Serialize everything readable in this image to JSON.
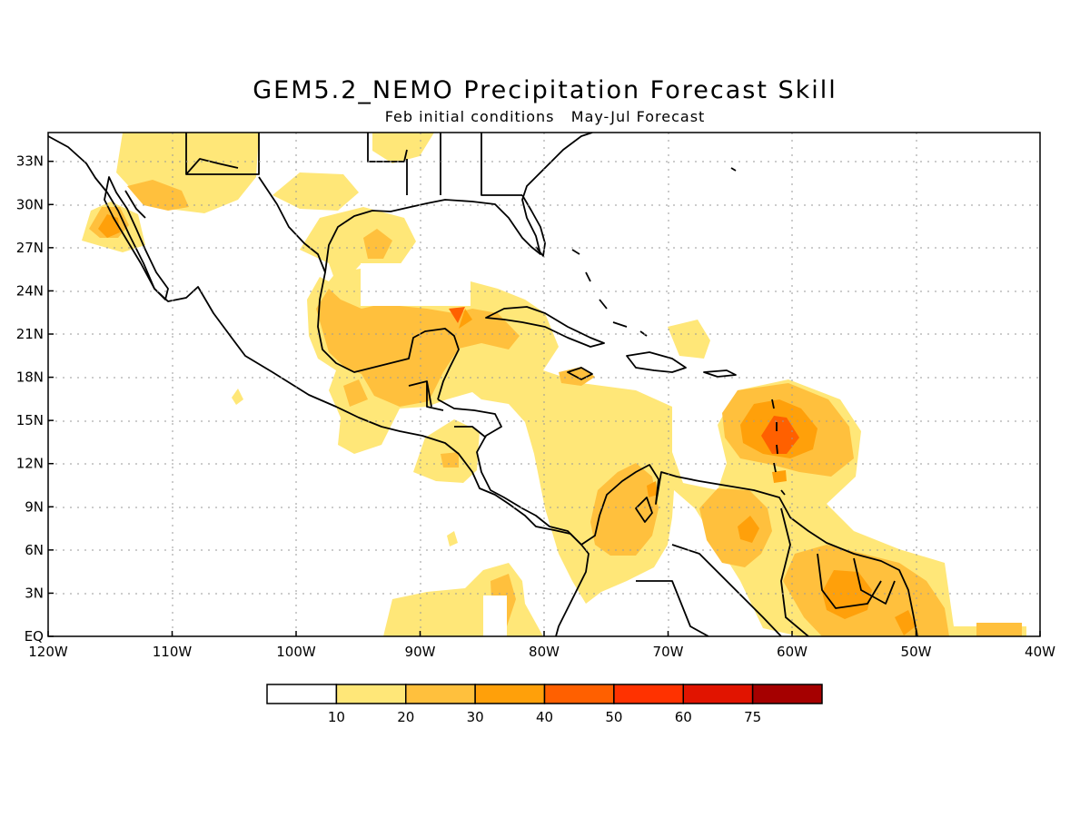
{
  "title": "GEM5.2_NEMO Precipitation Forecast Skill",
  "subtitle": "Feb initial conditions   May-Jul Forecast",
  "axes": {
    "x_ticks": [
      "120W",
      "110W",
      "100W",
      "90W",
      "80W",
      "70W",
      "60W",
      "50W",
      "40W"
    ],
    "y_ticks": [
      "EQ",
      "3N",
      "6N",
      "9N",
      "12N",
      "15N",
      "18N",
      "21N",
      "24N",
      "27N",
      "30N",
      "33N"
    ],
    "lon_range": [
      -120,
      -40
    ],
    "lat_range": [
      0,
      35
    ],
    "grid": "dotted"
  },
  "legend": {
    "labels": [
      "10",
      "20",
      "30",
      "40",
      "50",
      "60",
      "75"
    ],
    "colors": [
      "#ffffff",
      "#ffe778",
      "#ffc03d",
      "#ffa00a",
      "#ff6000",
      "#ff3200",
      "#e11400",
      "#a50000"
    ]
  }
}
